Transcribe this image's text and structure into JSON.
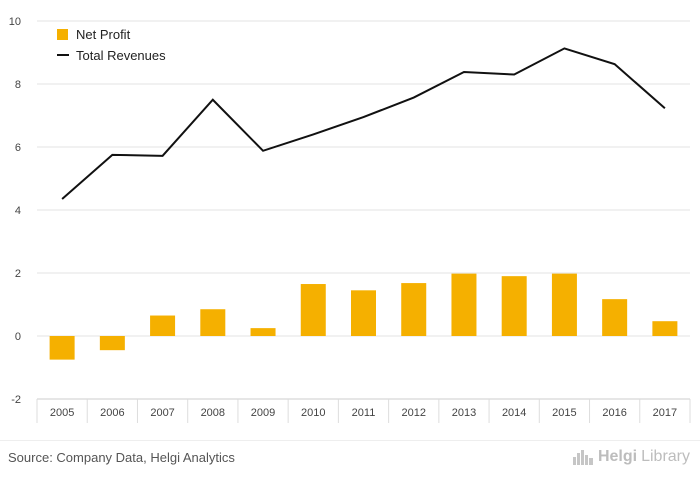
{
  "chart_data": {
    "type": "bar",
    "categories": [
      "2005",
      "2006",
      "2007",
      "2008",
      "2009",
      "2010",
      "2011",
      "2012",
      "2013",
      "2014",
      "2015",
      "2016",
      "2017"
    ],
    "series": [
      {
        "name": "Net Profit",
        "type": "bar",
        "color": "#f5b000",
        "values": [
          -0.75,
          -0.45,
          0.65,
          0.85,
          0.25,
          1.65,
          1.45,
          1.68,
          1.98,
          1.9,
          1.98,
          1.17,
          0.47
        ]
      },
      {
        "name": "Total Revenues",
        "type": "line",
        "color": "#111111",
        "values": [
          4.35,
          5.75,
          5.72,
          7.5,
          5.88,
          6.4,
          6.95,
          7.57,
          8.38,
          8.3,
          9.13,
          8.63,
          7.23
        ]
      }
    ],
    "title": "",
    "xlabel": "",
    "ylabel": "",
    "ylim": [
      -2,
      10
    ],
    "yticks": [
      -2,
      0,
      2,
      4,
      6,
      8,
      10
    ],
    "grid": true,
    "legend_position": "top-left"
  },
  "footer": {
    "source": "Source: Company Data, Helgi Analytics",
    "brand_first": "Helgi",
    "brand_second": "Library",
    "brand_icon": "skyline-icon"
  }
}
